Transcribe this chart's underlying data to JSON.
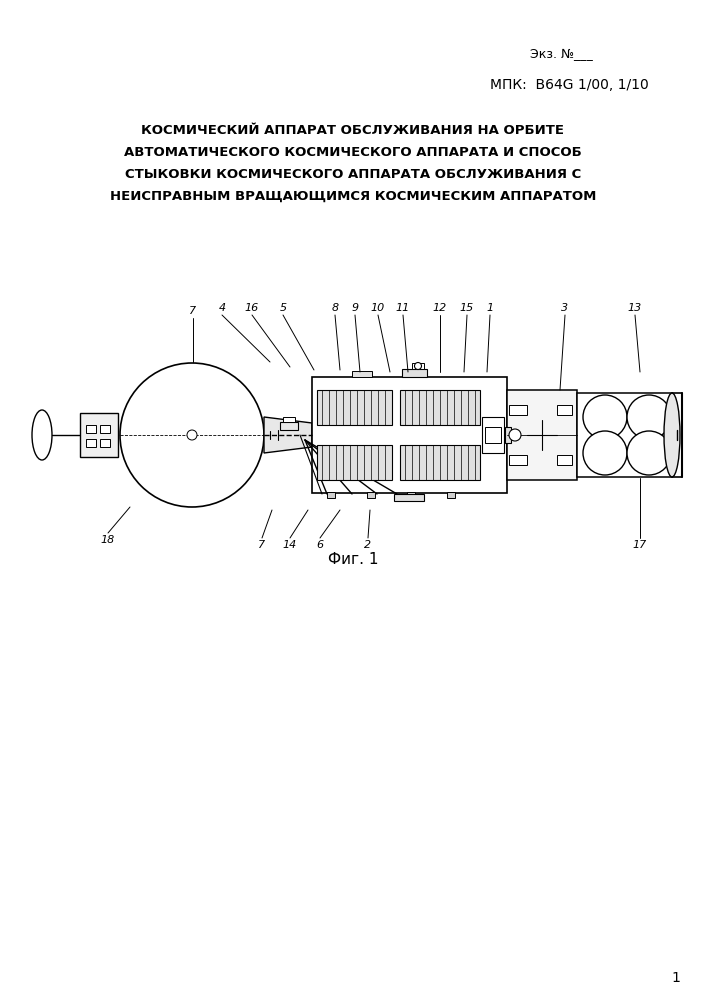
{
  "bg_color": "#ffffff",
  "text_color": "#000000",
  "line_color": "#000000",
  "ekz_text": "Экз. №___",
  "mpk_text": "МПК:  B64G 1/00, 1/10",
  "title_line1": "КОСМИЧЕСКИЙ АППАРАТ ОБСЛУЖИВАНИЯ НА ОРБИТЕ",
  "title_line2": "АВТОМАТИЧЕСКОГО КОСМИЧЕСКОГО АППАРАТА И СПОСОБ",
  "title_line3": "СТЫКОВКИ КОСМИЧЕСКОГО АППАРАТА ОБСЛУЖИВАНИЯ С",
  "title_line4": "НЕИСПРАВНЫМ ВРАЩАЮЩИМСЯ КОСМИЧЕСКИМ АППАРАТОМ",
  "fig_caption": "Фиг. 1",
  "page_number": "1"
}
